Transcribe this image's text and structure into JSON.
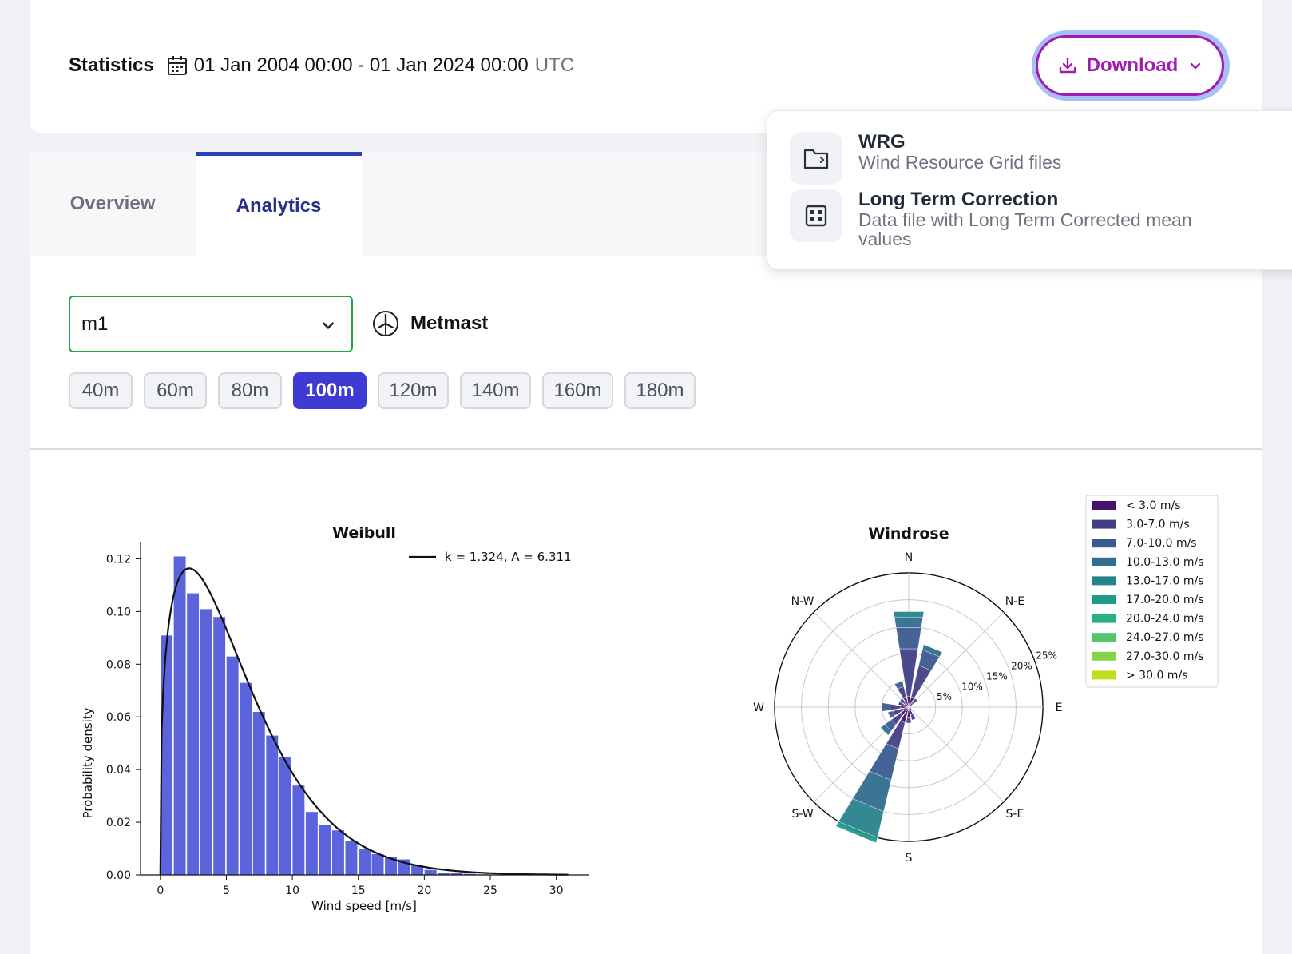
{
  "header": {
    "title": "Statistics",
    "date_range": "01 Jan 2004 00:00 - 01 Jan 2024 00:00",
    "timezone": "UTC",
    "download_label": "Download"
  },
  "download_menu": {
    "items": [
      {
        "title": "WRG",
        "description": "Wind Resource Grid files",
        "icon": "folder-icon"
      },
      {
        "title": "Long Term Correction",
        "description": "Data file with Long Term Corrected mean values",
        "icon": "grid-icon"
      }
    ]
  },
  "tabs": [
    {
      "label": "Overview",
      "active": false
    },
    {
      "label": "Analytics",
      "active": true
    }
  ],
  "selector": {
    "value": "m1",
    "type_label": "Metmast"
  },
  "heights": [
    {
      "label": "40m",
      "active": false
    },
    {
      "label": "60m",
      "active": false
    },
    {
      "label": "80m",
      "active": false
    },
    {
      "label": "100m",
      "active": true
    },
    {
      "label": "120m",
      "active": false
    },
    {
      "label": "140m",
      "active": false
    },
    {
      "label": "160m",
      "active": false
    },
    {
      "label": "180m",
      "active": false
    }
  ],
  "colors": {
    "accent": "#a21caf",
    "tab_active": "#2d3fb4",
    "height_active": "#3d3bd1",
    "bar": "#5b63dd",
    "select_border": "#22a447"
  },
  "chart_data": [
    {
      "type": "bar",
      "title": "Weibull",
      "xlabel": "Wind speed [m/s]",
      "ylabel": "Probability density",
      "xlim": [
        -1.5,
        32.5
      ],
      "ylim": [
        0,
        0.12
      ],
      "xticks": [
        "0",
        "5",
        "10",
        "15",
        "20",
        "25",
        "30"
      ],
      "yticks": [
        "0.00",
        "0.02",
        "0.04",
        "0.06",
        "0.08",
        "0.10",
        "0.12"
      ],
      "bin_width": 1,
      "x": [
        0,
        1,
        2,
        3,
        4,
        5,
        6,
        7,
        8,
        9,
        10,
        11,
        12,
        13,
        14,
        15,
        16,
        17,
        18,
        19,
        20,
        21,
        22,
        23,
        24,
        25
      ],
      "values": [
        0.091,
        0.121,
        0.107,
        0.101,
        0.098,
        0.083,
        0.073,
        0.062,
        0.053,
        0.045,
        0.034,
        0.024,
        0.019,
        0.017,
        0.013,
        0.01,
        0.008,
        0.007,
        0.006,
        0.004,
        0.002,
        0.001,
        0.001,
        0.0005,
        0.0003,
        0.0002
      ],
      "fit": {
        "name": "k = 1.324, A = 6.311",
        "k": 1.324,
        "A": 6.311
      },
      "legend_position": "top-right"
    },
    {
      "type": "windrose",
      "title": "Windrose",
      "directions": [
        "N",
        "N-E",
        "E",
        "S-E",
        "S",
        "S-W",
        "W",
        "N-W"
      ],
      "radial_ticks": [
        "5%",
        "10%",
        "15%",
        "20%",
        "25%"
      ],
      "rmax": 25,
      "speed_bins": [
        "< 3.0 m/s",
        "3.0-7.0 m/s",
        "7.0-10.0 m/s",
        "10.0-13.0 m/s",
        "13.0-17.0 m/s",
        "17.0-20.0 m/s",
        "20.0-24.0 m/s",
        "24.0-27.0 m/s",
        "27.0-30.0 m/s",
        "> 30.0 m/s"
      ],
      "bin_colors": [
        "#46136a",
        "#433f87",
        "#3b5b8e",
        "#2f6e8e",
        "#27838e",
        "#1f9a8a",
        "#2bb07f",
        "#55c667",
        "#86d549",
        "#bfdf25"
      ],
      "legend_position": "right",
      "sectors": [
        {
          "angle": 0,
          "stack": [
            2,
            9,
            4,
            2,
            1
          ]
        },
        {
          "angle": 22.5,
          "stack": [
            2,
            6,
            3,
            1
          ]
        },
        {
          "angle": 45,
          "stack": [
            1,
            1
          ]
        },
        {
          "angle": 67.5,
          "stack": [
            0.5
          ]
        },
        {
          "angle": 90,
          "stack": [
            0.5
          ]
        },
        {
          "angle": 112.5,
          "stack": [
            0.5
          ]
        },
        {
          "angle": 135,
          "stack": [
            0.7
          ]
        },
        {
          "angle": 157.5,
          "stack": [
            1.5,
            1
          ]
        },
        {
          "angle": 180,
          "stack": [
            2,
            1
          ]
        },
        {
          "angle": 202.5,
          "stack": [
            3,
            5,
            6,
            6,
            5,
            1
          ]
        },
        {
          "angle": 225,
          "stack": [
            2,
            2,
            1.5,
            1
          ]
        },
        {
          "angle": 247.5,
          "stack": [
            1,
            2,
            1
          ]
        },
        {
          "angle": 270,
          "stack": [
            1.5,
            2,
            1.5
          ]
        },
        {
          "angle": 292.5,
          "stack": [
            1,
            1
          ]
        },
        {
          "angle": 315,
          "stack": [
            1,
            1
          ]
        },
        {
          "angle": 337.5,
          "stack": [
            2,
            2,
            1
          ]
        }
      ]
    }
  ]
}
